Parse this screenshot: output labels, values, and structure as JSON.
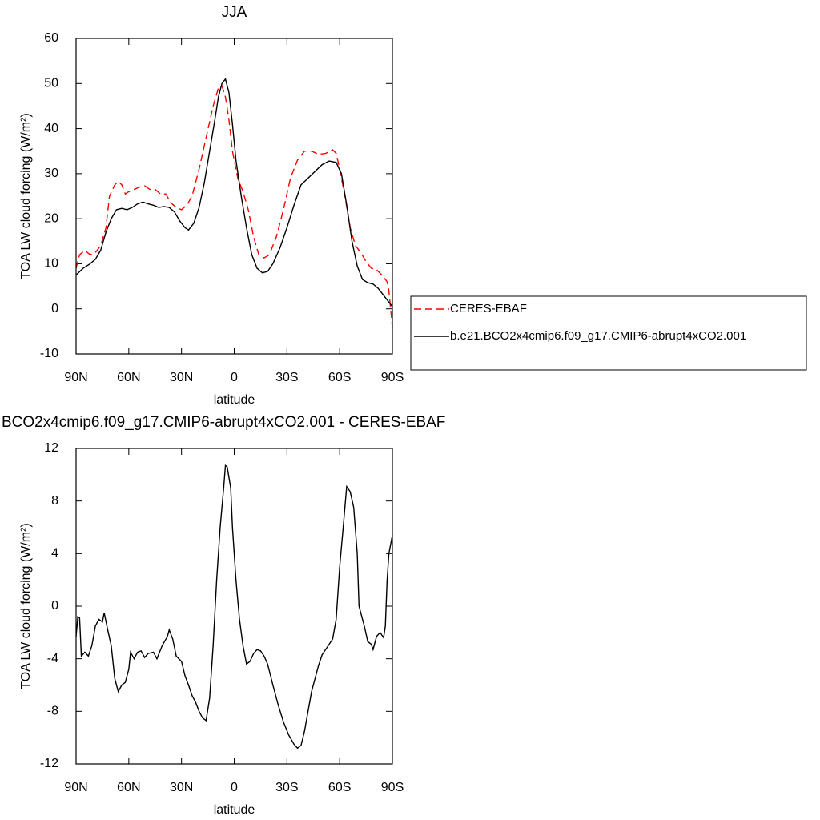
{
  "chart_data": [
    {
      "type": "line",
      "title": "JJA",
      "xlabel": "latitude",
      "ylabel": "TOA LW cloud forcing (W/m²)",
      "xlim": [
        90,
        -90
      ],
      "ylim": [
        -10,
        60
      ],
      "xticks": [
        {
          "value": 90,
          "label": "90N"
        },
        {
          "value": 60,
          "label": "60N"
        },
        {
          "value": 30,
          "label": "30N"
        },
        0,
        {
          "value": -30,
          "label": "30S"
        },
        {
          "value": -60,
          "label": "60S"
        },
        {
          "value": -90,
          "label": "90S"
        }
      ],
      "yticks": [
        -10,
        0,
        10,
        20,
        30,
        40,
        50,
        60
      ],
      "legend": "right",
      "series": [
        {
          "name": "CERES-EBAF",
          "color": "#ff0000",
          "line_style": "dashed",
          "x": [
            90,
            88,
            85,
            82,
            79,
            76,
            73,
            71,
            68,
            66,
            64,
            62,
            60,
            57,
            54,
            51,
            48,
            45,
            42,
            39,
            36,
            33,
            30,
            27,
            24,
            20,
            16,
            12,
            9,
            7,
            5,
            3,
            1,
            -2,
            -5,
            -8,
            -11,
            -14,
            -17,
            -20,
            -24,
            -28,
            -32,
            -36,
            -40,
            -44,
            -48,
            -52,
            -56,
            -58,
            -60,
            -63,
            -66,
            -69,
            -72,
            -75,
            -78,
            -81,
            -84,
            -87,
            -88,
            -90
          ],
          "values": [
            9,
            12,
            13,
            12,
            12.5,
            14,
            18,
            25,
            27.5,
            28.3,
            27.5,
            25.5,
            26,
            26.5,
            27,
            27.3,
            26.5,
            26.5,
            25.5,
            25.5,
            23.5,
            22.5,
            22,
            23,
            25,
            31,
            38,
            45,
            49,
            49.5,
            47,
            42,
            35,
            29,
            26,
            22,
            16,
            12,
            11.3,
            12,
            16,
            22,
            29,
            33,
            35,
            35,
            34.3,
            34.5,
            35.3,
            34.5,
            31,
            25,
            18,
            14,
            12.5,
            10.5,
            9,
            8.7,
            7.5,
            6,
            4,
            -4
          ]
        },
        {
          "name": "b.e21.BCO2x4cmip6.f09_g17.CMIP6-abrupt4xCO2.001",
          "color": "#000000",
          "line_style": "solid",
          "x": [
            90,
            86,
            82,
            79,
            76,
            73,
            70,
            67,
            64,
            61,
            58,
            55,
            52,
            49,
            46,
            43,
            40,
            37,
            34,
            31,
            28,
            26,
            23,
            20,
            17,
            14,
            11,
            9,
            7,
            5,
            3,
            1,
            -1,
            -4,
            -7,
            -10,
            -13,
            -16,
            -19,
            -22,
            -26,
            -30,
            -34,
            -38,
            -42,
            -46,
            -50,
            -54,
            -58,
            -61,
            -64,
            -67,
            -70,
            -73,
            -76,
            -79,
            -82,
            -85,
            -88,
            -90
          ],
          "values": [
            7.5,
            9,
            10,
            11,
            13,
            17,
            20,
            22,
            22.3,
            22,
            22.5,
            23.3,
            23.7,
            23.3,
            23,
            22.5,
            22.7,
            22.5,
            21.5,
            19.5,
            18,
            17.5,
            19,
            22.5,
            28,
            35,
            42,
            47,
            50,
            51,
            48,
            41,
            33,
            25,
            18,
            12,
            9,
            8,
            8.3,
            10,
            13.5,
            18,
            23,
            27.5,
            29,
            30.5,
            32,
            32.8,
            32.5,
            30,
            23,
            15,
            9.5,
            6.5,
            5.8,
            5.5,
            4.5,
            3,
            1.5,
            0.5
          ]
        }
      ]
    },
    {
      "type": "line",
      "title": "BCO2x4cmip6.f09_g17.CMIP6-abrupt4xCO2.001 - CERES-EBAF",
      "xlabel": "latitude",
      "ylabel": "TOA LW cloud forcing (W/m²)",
      "xlim": [
        90,
        -90
      ],
      "ylim": [
        -12,
        12
      ],
      "xticks": [
        {
          "value": 90,
          "label": "90N"
        },
        {
          "value": 60,
          "label": "60N"
        },
        {
          "value": 30,
          "label": "30N"
        },
        0,
        {
          "value": -30,
          "label": "30S"
        },
        {
          "value": -60,
          "label": "60S"
        },
        {
          "value": -90,
          "label": "90S"
        }
      ],
      "yticks": [
        -12,
        -8,
        -4,
        0,
        4,
        8,
        12
      ],
      "color": "#000000",
      "x": [
        90,
        89,
        88,
        87,
        85,
        83,
        81,
        79,
        77,
        75,
        74,
        72,
        70,
        68,
        66,
        64,
        62,
        60,
        59,
        57,
        55,
        53,
        51,
        49,
        46,
        44,
        41,
        38,
        37,
        35,
        33,
        30,
        28,
        26,
        24,
        22,
        20,
        18,
        16,
        14,
        12,
        10,
        8,
        6,
        5,
        4,
        2,
        1,
        -1,
        -3,
        -5,
        -7,
        -9,
        -11,
        -13,
        -15,
        -17,
        -19,
        -22,
        -25,
        -28,
        -31,
        -34,
        -36,
        -38,
        -40,
        -42,
        -44,
        -46,
        -48,
        -50,
        -53,
        -56,
        -58,
        -60,
        -62,
        -64,
        -66,
        -68,
        -70,
        -71,
        -73,
        -74,
        -76,
        -78,
        -79,
        -81,
        -83,
        -85,
        -86,
        -87,
        -88,
        -90
      ],
      "values": [
        -2.3,
        -0.8,
        -0.9,
        -3.8,
        -3.5,
        -3.8,
        -3,
        -1.5,
        -1,
        -1.2,
        -0.5,
        -1.8,
        -3,
        -5.5,
        -6.5,
        -6,
        -5.8,
        -4.8,
        -3.5,
        -4,
        -3.5,
        -3.4,
        -3.9,
        -3.6,
        -3.5,
        -4,
        -3,
        -2.3,
        -1.8,
        -2.5,
        -3.8,
        -4.2,
        -5.3,
        -6,
        -6.8,
        -7.3,
        -8,
        -8.5,
        -8.7,
        -7,
        -3,
        2,
        6,
        9,
        10.7,
        10.6,
        9,
        6,
        2,
        -1,
        -3,
        -4.4,
        -4.2,
        -3.6,
        -3.3,
        -3.4,
        -3.8,
        -4.4,
        -6,
        -7.5,
        -8.8,
        -9.8,
        -10.5,
        -10.8,
        -10.6,
        -9.5,
        -8,
        -6.5,
        -5.5,
        -4.5,
        -3.7,
        -3.1,
        -2.5,
        -1,
        3,
        6,
        9.1,
        8.7,
        7.5,
        4,
        0,
        -1,
        -1.5,
        -2.7,
        -2.9,
        -3.3,
        -2.3,
        -2,
        -2.4,
        -1.5,
        2,
        4,
        5.4
      ]
    }
  ]
}
